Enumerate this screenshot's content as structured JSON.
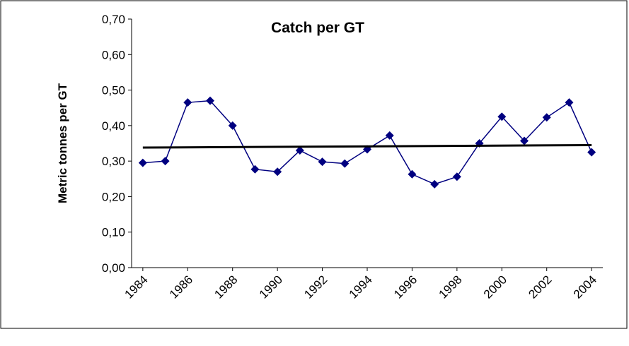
{
  "chart_data": {
    "type": "line",
    "title": "Catch per GT",
    "y_label": "Metric tonnes per GT",
    "x": [
      1984,
      1985,
      1986,
      1987,
      1988,
      1989,
      1990,
      1991,
      1992,
      1993,
      1994,
      1995,
      1996,
      1997,
      1998,
      1999,
      2000,
      2001,
      2002,
      2003,
      2004
    ],
    "series": [
      {
        "color": "#000080",
        "values": [
          0.295,
          0.3,
          0.465,
          0.47,
          0.4,
          0.277,
          0.27,
          0.33,
          0.298,
          0.293,
          0.333,
          0.372,
          0.263,
          0.235,
          0.256,
          0.35,
          0.425,
          0.357,
          0.423,
          0.465,
          0.325
        ]
      }
    ],
    "trendline": {
      "color": "#000000",
      "x": [
        1984,
        2004
      ],
      "values": [
        0.338,
        0.345
      ]
    },
    "xlim": [
      1983.5,
      2004.5
    ],
    "xticks": [
      1984,
      1986,
      1988,
      1990,
      1992,
      1994,
      1996,
      1998,
      2000,
      2002,
      2004
    ],
    "ylim": [
      0,
      0.7
    ],
    "yticks": [
      {
        "value": 0,
        "label": "0,00"
      },
      {
        "value": 0.1,
        "label": "0,10"
      },
      {
        "value": 0.2,
        "label": "0,20"
      },
      {
        "value": 0.3,
        "label": "0,30"
      },
      {
        "value": 0.4,
        "label": "0,40"
      },
      {
        "value": 0.5,
        "label": "0,50"
      },
      {
        "value": 0.6,
        "label": "0,60"
      },
      {
        "value": 0.7,
        "label": "0,70"
      }
    ]
  }
}
